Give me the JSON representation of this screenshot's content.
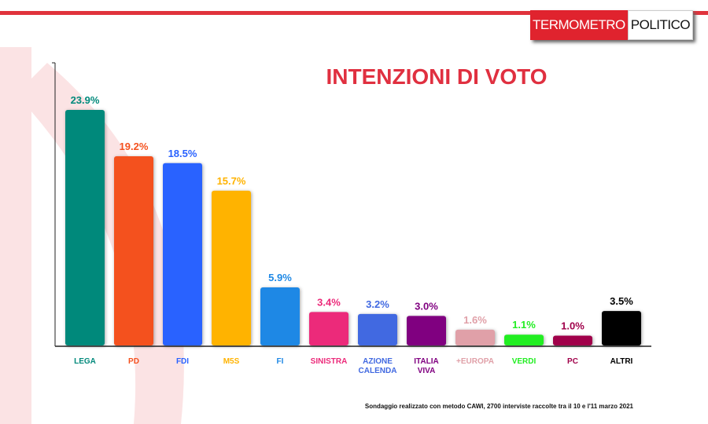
{
  "logo": {
    "part1": "TERMOMETRO",
    "part2": "POLITICO"
  },
  "chart_data": {
    "type": "bar",
    "title": "INTENZIONI DI VOTO",
    "categories": [
      "LEGA",
      "PD",
      "FDI",
      "M5S",
      "FI",
      "SINISTRA",
      "AZIONE CALENDA",
      "ITALIA VIVA",
      "+EUROPA",
      "VERDI",
      "PC",
      "ALTRI"
    ],
    "values": [
      23.9,
      19.2,
      18.5,
      15.7,
      5.9,
      3.4,
      3.2,
      3.0,
      1.6,
      1.1,
      1.0,
      3.5
    ],
    "labels": [
      "23.9%",
      "19.2%",
      "18.5%",
      "15.7%",
      "5.9%",
      "3.4%",
      "3.2%",
      "3.0%",
      "1.6%",
      "1.1%",
      "1.0%",
      "3.5%"
    ],
    "colors": [
      "#00897b",
      "#f4511e",
      "#2962ff",
      "#ffb300",
      "#1e88e5",
      "#ec2a7a",
      "#4169e1",
      "#800080",
      "#e0a0a8",
      "#22ee22",
      "#a0004a",
      "#000000"
    ],
    "ylim": [
      0,
      28.7
    ],
    "xlabel": "",
    "ylabel": ""
  },
  "note": "Sondaggio realizzato con metodo CAWI, 2700 interviste raccolte tra il 10 e l'11 marzo 2021"
}
